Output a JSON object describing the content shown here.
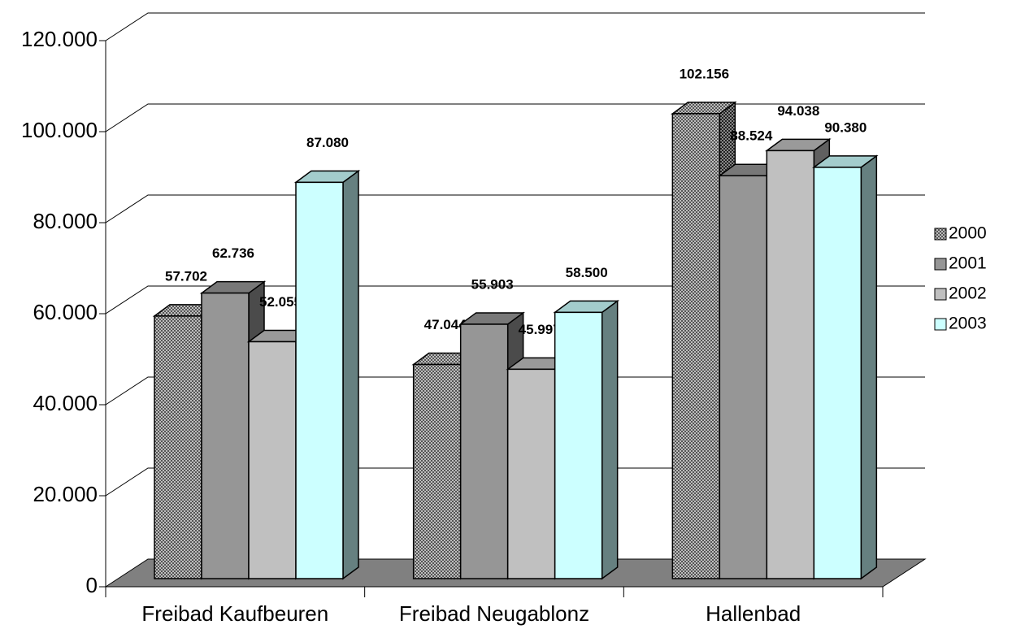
{
  "chart_data": {
    "type": "bar3d",
    "categories": [
      "Freibad Kaufbeuren",
      "Freibad Neugablonz",
      "Hallenbad"
    ],
    "series": [
      {
        "name": "2000",
        "color": "#8c8c8c",
        "pattern": "checker",
        "values": [
          57702,
          47044,
          102156
        ],
        "value_labels": [
          "57.702",
          "47.044",
          "102.156"
        ]
      },
      {
        "name": "2001",
        "color": "#969696",
        "values": [
          62736,
          55903,
          88524
        ],
        "value_labels": [
          "62.736",
          "55.903",
          "88.524"
        ]
      },
      {
        "name": "2002",
        "color": "#c0c0c0",
        "values": [
          52055,
          45997,
          94038
        ],
        "value_labels": [
          "52.055",
          "45.997",
          "94.038"
        ]
      },
      {
        "name": "2003",
        "color": "#ccffff",
        "values": [
          87080,
          58500,
          90380
        ],
        "value_labels": [
          "87.080",
          "58.500",
          "90.380"
        ]
      }
    ],
    "ylim": [
      0,
      120000
    ],
    "yticks": [
      0,
      {
        "value": 20000,
        "label": "20.000"
      },
      {
        "value": 40000,
        "label": "40.000"
      },
      {
        "value": 60000,
        "label": "60.000"
      },
      {
        "value": 80000,
        "label": "80.000"
      },
      {
        "value": 100000,
        "label": "100.000"
      },
      {
        "value": 120000,
        "label": "120.000"
      }
    ],
    "grid": true,
    "legend": "right"
  }
}
